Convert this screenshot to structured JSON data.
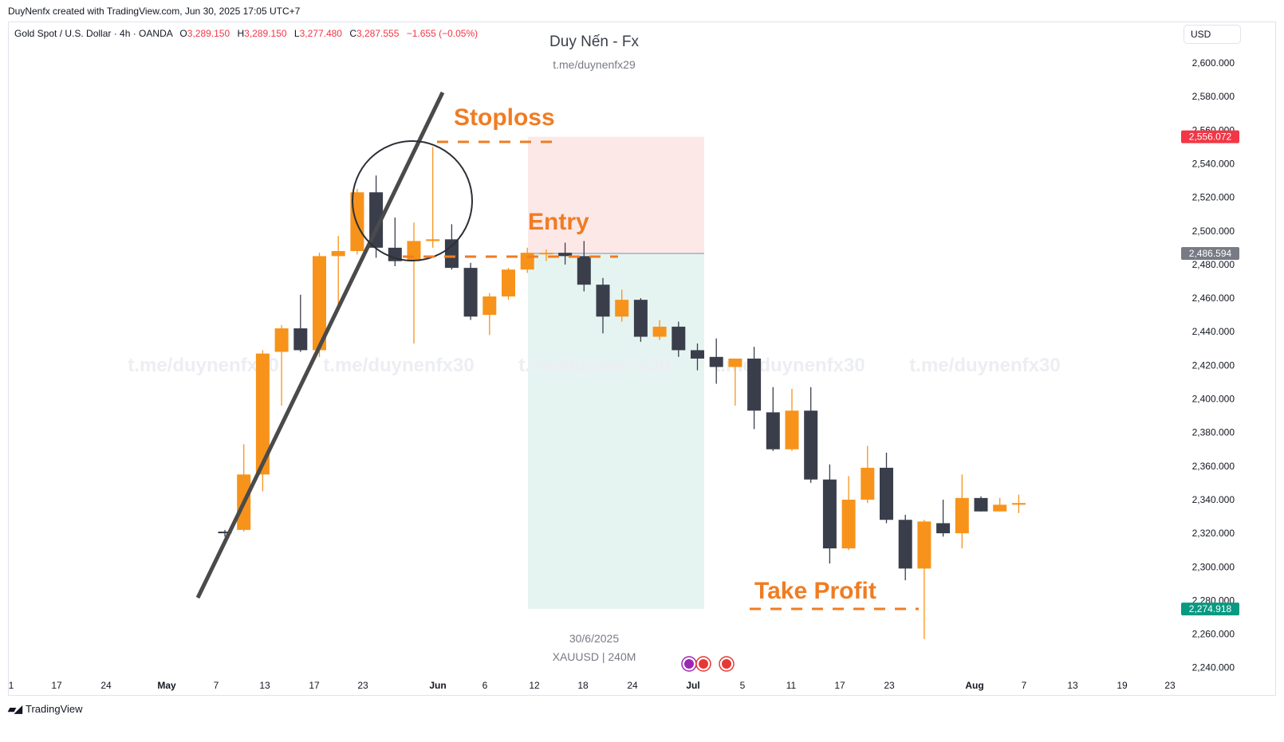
{
  "credit": "DuyNenfx created with TradingView.com, Jun 30, 2025 17:05 UTC+7",
  "symbol_line": {
    "symbol": "Gold Spot / U.S. Dollar · 4h · OANDA",
    "open_label": "O",
    "open": "3,289.150",
    "high_label": "H",
    "high": "3,289.150",
    "low_label": "L",
    "low": "3,277.480",
    "close_label": "C",
    "close": "3,287.555",
    "change": "−1.655 (−0.05%)"
  },
  "currency": "USD",
  "watermark": {
    "title": "Duy Nến - Fx",
    "subtitle": "t.me/duynenfx29",
    "repeat_text": "t.me/duynenfx30",
    "date": "30/6/2025",
    "symbol_interval": "XAUUSD | 240M"
  },
  "annotations": {
    "stoploss": "Stoploss",
    "entry": "Entry",
    "take_profit": "Take Profit"
  },
  "price_badges": {
    "stoploss": "2,556.072",
    "entry": "2,486.594",
    "take_profit": "2,274.918"
  },
  "brand": "TradingView",
  "colors": {
    "bull": "#f7931a",
    "bear": "#3a3e4b",
    "annotation": "#f07c22",
    "loss_zone": "#fde8e8",
    "profit_zone": "#e6f4f1",
    "sl_badge": "#f23645",
    "entry_badge": "#787b86",
    "tp_badge": "#089981",
    "trendline": "#4a4a4a"
  },
  "chart_data": {
    "type": "candlestick",
    "ylim": [
      2230,
      2615
    ],
    "y_ticks": [
      "2,240.000",
      "2,260.000",
      "2,280.000",
      "2,300.000",
      "2,320.000",
      "2,340.000",
      "2,360.000",
      "2,380.000",
      "2,400.000",
      "2,420.000",
      "2,440.000",
      "2,460.000",
      "2,480.000",
      "2,500.000",
      "2,520.000",
      "2,540.000",
      "2,560.000",
      "2,580.000",
      "2,600.000"
    ],
    "y_tick_values": [
      2240,
      2260,
      2280,
      2300,
      2320,
      2340,
      2360,
      2380,
      2400,
      2420,
      2440,
      2460,
      2480,
      2500,
      2520,
      2540,
      2560,
      2580,
      2600
    ],
    "x_ticks": [
      "1",
      "17",
      "24",
      "May",
      "7",
      "13",
      "17",
      "23",
      "Jun",
      "6",
      "12",
      "18",
      "24",
      "Jul",
      "5",
      "11",
      "17",
      "23",
      "Aug",
      "7",
      "13",
      "19",
      "23"
    ],
    "bold_x_ticks": [
      "May",
      "Jun",
      "Jul",
      "Aug"
    ],
    "candles": [
      {
        "o": 2321,
        "h": 2322,
        "l": 2318,
        "c": 2320
      },
      {
        "o": 2322,
        "h": 2373,
        "l": 2321,
        "c": 2355
      },
      {
        "o": 2355,
        "h": 2429,
        "l": 2345,
        "c": 2427
      },
      {
        "o": 2428,
        "h": 2444,
        "l": 2396,
        "c": 2442
      },
      {
        "o": 2442,
        "h": 2462,
        "l": 2428,
        "c": 2429
      },
      {
        "o": 2429,
        "h": 2487,
        "l": 2425,
        "c": 2485
      },
      {
        "o": 2485,
        "h": 2497,
        "l": 2455,
        "c": 2488
      },
      {
        "o": 2488,
        "h": 2525,
        "l": 2486,
        "c": 2523
      },
      {
        "o": 2523,
        "h": 2533,
        "l": 2484,
        "c": 2490
      },
      {
        "o": 2490,
        "h": 2508,
        "l": 2479,
        "c": 2482
      },
      {
        "o": 2482,
        "h": 2505,
        "l": 2433,
        "c": 2494
      },
      {
        "o": 2494,
        "h": 2550,
        "l": 2490,
        "c": 2495
      },
      {
        "o": 2495,
        "h": 2504,
        "l": 2477,
        "c": 2478
      },
      {
        "o": 2478,
        "h": 2481,
        "l": 2447,
        "c": 2449
      },
      {
        "o": 2450,
        "h": 2463,
        "l": 2438,
        "c": 2461
      },
      {
        "o": 2461,
        "h": 2478,
        "l": 2459,
        "c": 2477
      },
      {
        "o": 2477,
        "h": 2490,
        "l": 2475,
        "c": 2487
      },
      {
        "o": 2487,
        "h": 2489,
        "l": 2482,
        "c": 2487
      },
      {
        "o": 2487,
        "h": 2493,
        "l": 2480,
        "c": 2485
      },
      {
        "o": 2485,
        "h": 2494,
        "l": 2464,
        "c": 2468
      },
      {
        "o": 2468,
        "h": 2472,
        "l": 2439,
        "c": 2449
      },
      {
        "o": 2449,
        "h": 2465,
        "l": 2446,
        "c": 2459
      },
      {
        "o": 2459,
        "h": 2460,
        "l": 2434,
        "c": 2437
      },
      {
        "o": 2437,
        "h": 2447,
        "l": 2435,
        "c": 2443
      },
      {
        "o": 2443,
        "h": 2446,
        "l": 2425,
        "c": 2429
      },
      {
        "o": 2429,
        "h": 2433,
        "l": 2417,
        "c": 2424
      },
      {
        "o": 2425,
        "h": 2436,
        "l": 2409,
        "c": 2419
      },
      {
        "o": 2419,
        "h": 2424,
        "l": 2396,
        "c": 2424
      },
      {
        "o": 2424,
        "h": 2431,
        "l": 2382,
        "c": 2393
      },
      {
        "o": 2392,
        "h": 2407,
        "l": 2369,
        "c": 2370
      },
      {
        "o": 2370,
        "h": 2406,
        "l": 2369,
        "c": 2393
      },
      {
        "o": 2393,
        "h": 2407,
        "l": 2350,
        "c": 2352
      },
      {
        "o": 2352,
        "h": 2361,
        "l": 2302,
        "c": 2311
      },
      {
        "o": 2311,
        "h": 2354,
        "l": 2310,
        "c": 2340
      },
      {
        "o": 2340,
        "h": 2372,
        "l": 2338,
        "c": 2359
      },
      {
        "o": 2359,
        "h": 2368,
        "l": 2326,
        "c": 2328
      },
      {
        "o": 2328,
        "h": 2331,
        "l": 2292,
        "c": 2299
      },
      {
        "o": 2299,
        "h": 2328,
        "l": 2257,
        "c": 2327
      },
      {
        "o": 2326,
        "h": 2340,
        "l": 2318,
        "c": 2320
      },
      {
        "o": 2320,
        "h": 2355,
        "l": 2311,
        "c": 2341
      },
      {
        "o": 2341,
        "h": 2342,
        "l": 2333,
        "c": 2333
      },
      {
        "o": 2333,
        "h": 2341,
        "l": 2333,
        "c": 2337
      },
      {
        "o": 2337,
        "h": 2343,
        "l": 2332,
        "c": 2338
      }
    ],
    "position": {
      "type": "short",
      "stoploss": 2556.072,
      "entry": 2486.594,
      "take_profit": 2274.918
    },
    "grid": false
  }
}
